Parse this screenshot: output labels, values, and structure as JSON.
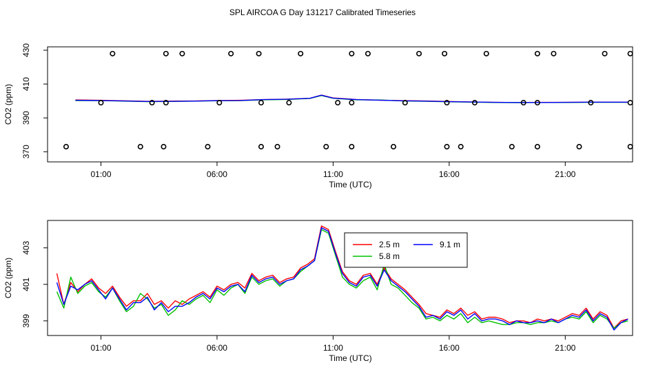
{
  "figure_title": "SPL AIRCOA G  Day 131217  Calibrated Timeseries",
  "chart_data": [
    {
      "type": "line",
      "title": "",
      "xlabel": "Time (UTC)",
      "ylabel": "CO2 (ppm)",
      "xlim": [
        -1.3,
        23.9
      ],
      "ylim": [
        364,
        432
      ],
      "x_ticks": [
        1,
        6,
        11,
        16,
        21
      ],
      "x_tick_labels": [
        "01:00",
        "06:00",
        "11:00",
        "16:00",
        "21:00"
      ],
      "y_ticks": [
        370,
        390,
        410,
        430
      ],
      "y_tick_labels": [
        "370",
        "390",
        "410",
        "430"
      ],
      "grid": false,
      "legend": "none",
      "series": [
        {
          "color": "#ff0000",
          "x": [
            -0.1,
            1,
            2,
            3,
            4,
            5,
            6,
            7,
            8,
            9,
            10,
            10.5,
            11,
            12,
            13,
            14,
            15,
            16,
            17,
            18,
            19,
            20,
            21,
            22,
            23.7
          ],
          "values": [
            400.6,
            400.4,
            400.1,
            399.8,
            399.9,
            400,
            400.3,
            400.4,
            400.8,
            401.1,
            401.6,
            403.5,
            401.8,
            400.9,
            400.5,
            400.2,
            400,
            399.7,
            399.4,
            399.2,
            399.1,
            399.2,
            399.2,
            399.3,
            399.3
          ]
        },
        {
          "color": "#00c000",
          "x": [
            -0.1,
            1,
            2,
            3,
            4,
            5,
            6,
            7,
            8,
            9,
            10,
            10.5,
            11,
            12,
            13,
            14,
            15,
            16,
            17,
            18,
            19,
            20,
            21,
            22,
            23.7
          ],
          "values": [
            400.2,
            400.2,
            399.9,
            399.6,
            399.7,
            399.9,
            400.1,
            400.2,
            400.7,
            400.9,
            401.5,
            403.2,
            401.6,
            400.7,
            400.6,
            400,
            399.8,
            399.5,
            399.3,
            399.1,
            399,
            399.1,
            399.1,
            399.2,
            399.2
          ]
        },
        {
          "color": "#0000ff",
          "x": [
            -0.1,
            1,
            2,
            3,
            4,
            5,
            6,
            7,
            8,
            9,
            10,
            10.5,
            11,
            12,
            13,
            14,
            15,
            16,
            17,
            18,
            19,
            20,
            21,
            22,
            23.7
          ],
          "values": [
            400.4,
            400.3,
            400,
            399.7,
            399.8,
            399.9,
            400.2,
            400.3,
            400.8,
            401,
            401.6,
            403.4,
            401.7,
            400.8,
            400.5,
            400.1,
            399.9,
            399.6,
            399.4,
            399.2,
            399.1,
            399.1,
            399.2,
            399.3,
            399.3
          ]
        },
        {
          "type": "scatter",
          "marker": "circle",
          "color": "#000000",
          "x": [
            1.5,
            3.8,
            4.5,
            6.6,
            7.8,
            9.6,
            11.8,
            12.5,
            14.7,
            15.8,
            17.6,
            19.8,
            20.5,
            22.7,
            23.8,
            1,
            3.2,
            3.8,
            6.1,
            7.9,
            9.1,
            11.2,
            11.8,
            14.1,
            15.9,
            17.1,
            19.2,
            19.8,
            22.1,
            23.8,
            -0.5,
            2.7,
            3.7,
            5.6,
            7.9,
            8.6,
            10.7,
            11.8,
            13.6,
            15.9,
            16.5,
            18.7,
            19.8,
            21.6,
            23.8
          ],
          "values": [
            428,
            428,
            428,
            428,
            428,
            428,
            428,
            428,
            428,
            428,
            428,
            428,
            428,
            428,
            428,
            399,
            399,
            399,
            399,
            399,
            399,
            399,
            399,
            399,
            399,
            399,
            399,
            399,
            399,
            399,
            373,
            373,
            373,
            373,
            373,
            373,
            373,
            373,
            373,
            373,
            373,
            373,
            373,
            373,
            373
          ]
        }
      ]
    },
    {
      "type": "line",
      "title": "",
      "xlabel": "Time (UTC)",
      "ylabel": "CO2 (ppm)",
      "xlim": [
        -1.3,
        23.9
      ],
      "ylim": [
        398.2,
        404.5
      ],
      "x_ticks": [
        1,
        6,
        11,
        16,
        21
      ],
      "x_tick_labels": [
        "01:00",
        "06:00",
        "11:00",
        "16:00",
        "21:00"
      ],
      "y_ticks": [
        399,
        401,
        403
      ],
      "y_tick_labels": [
        "399",
        "401",
        "403"
      ],
      "grid": false,
      "legend": "top-right",
      "x": [
        -0.9,
        -0.6,
        -0.3,
        0,
        0.3,
        0.6,
        0.9,
        1.2,
        1.5,
        1.8,
        2.1,
        2.4,
        2.7,
        3.0,
        3.3,
        3.6,
        3.9,
        4.2,
        4.5,
        4.8,
        5.1,
        5.4,
        5.7,
        6.0,
        6.3,
        6.6,
        6.9,
        7.2,
        7.5,
        7.8,
        8.1,
        8.4,
        8.7,
        9.0,
        9.3,
        9.6,
        9.9,
        10.2,
        10.5,
        10.8,
        11.1,
        11.4,
        11.7,
        12.0,
        12.3,
        12.6,
        12.9,
        13.2,
        13.5,
        13.8,
        14.1,
        14.4,
        14.7,
        15.0,
        15.3,
        15.6,
        15.9,
        16.2,
        16.5,
        16.8,
        17.1,
        17.4,
        17.7,
        18.0,
        18.3,
        18.6,
        18.9,
        19.2,
        19.5,
        19.8,
        20.1,
        20.4,
        20.7,
        21.0,
        21.3,
        21.6,
        21.9,
        22.2,
        22.5,
        22.8,
        23.1,
        23.4,
        23.7
      ],
      "series": [
        {
          "name": "2.5 m",
          "color": "#ff0000",
          "values": [
            401.6,
            399.9,
            401.1,
            400.6,
            401.0,
            401.3,
            400.8,
            400.5,
            400.9,
            400.3,
            399.8,
            400.1,
            400.1,
            400.5,
            399.9,
            400.1,
            399.7,
            400.1,
            399.9,
            400.2,
            400.4,
            400.6,
            400.3,
            400.9,
            400.7,
            401.0,
            401.1,
            400.8,
            401.6,
            401.2,
            401.4,
            401.5,
            401.1,
            401.3,
            401.4,
            401.9,
            402.1,
            402.4,
            404.2,
            404.0,
            402.8,
            401.7,
            401.2,
            401.0,
            401.5,
            401.6,
            401.0,
            401.9,
            401.3,
            401.0,
            400.7,
            400.3,
            399.9,
            399.4,
            399.3,
            399.2,
            399.6,
            399.4,
            399.7,
            399.3,
            399.5,
            399.1,
            399.2,
            399.2,
            399.1,
            398.9,
            399.0,
            399.0,
            398.9,
            399.1,
            399.0,
            399.1,
            399.0,
            399.2,
            399.4,
            399.3,
            399.7,
            399.1,
            399.5,
            399.3,
            398.6,
            399.0,
            399.1
          ]
        },
        {
          "name": "5.8 m",
          "color": "#00c000",
          "values": [
            400.6,
            399.7,
            401.4,
            400.5,
            400.9,
            401.1,
            400.6,
            400.3,
            400.8,
            400.1,
            399.5,
            399.8,
            400.5,
            400.2,
            399.7,
            399.9,
            399.3,
            399.6,
            400.1,
            399.9,
            400.2,
            400.4,
            400.0,
            400.7,
            400.4,
            400.8,
            401.0,
            400.5,
            401.4,
            401.0,
            401.2,
            401.3,
            400.9,
            401.2,
            401.3,
            401.7,
            402.0,
            402.3,
            404.0,
            403.8,
            402.6,
            401.4,
            401.0,
            400.8,
            401.2,
            401.4,
            400.7,
            402.1,
            401.0,
            400.8,
            400.4,
            400.0,
            399.7,
            399.1,
            399.2,
            399.0,
            399.3,
            399.1,
            399.4,
            398.9,
            399.2,
            398.9,
            399.0,
            398.9,
            398.8,
            398.8,
            398.9,
            398.9,
            398.8,
            398.9,
            398.9,
            399.0,
            398.9,
            399.1,
            399.2,
            399.1,
            399.5,
            398.9,
            399.3,
            399.1,
            398.6,
            398.9,
            399.0
          ]
        },
        {
          "name": "9.1 m",
          "color": "#0000ff",
          "values": [
            401.1,
            399.9,
            400.9,
            400.7,
            401.0,
            401.2,
            400.7,
            400.2,
            400.8,
            400.2,
            399.6,
            400.0,
            400.0,
            400.3,
            399.6,
            400.0,
            399.5,
            399.8,
            399.8,
            400.0,
            400.3,
            400.5,
            400.2,
            400.8,
            400.6,
            400.9,
            401.0,
            400.6,
            401.5,
            401.1,
            401.3,
            401.4,
            401.0,
            401.2,
            401.3,
            401.8,
            402.0,
            402.3,
            404.1,
            403.9,
            402.7,
            401.6,
            401.1,
            400.9,
            401.4,
            401.5,
            400.9,
            401.8,
            401.2,
            400.9,
            400.6,
            400.2,
            399.8,
            399.2,
            399.3,
            399.1,
            399.5,
            399.3,
            399.6,
            399.1,
            399.4,
            399.0,
            399.1,
            399.1,
            399.0,
            398.8,
            399.0,
            398.9,
            398.9,
            399.0,
            398.9,
            399.1,
            398.9,
            399.1,
            399.3,
            399.2,
            399.6,
            399.0,
            399.4,
            399.2,
            398.5,
            398.9,
            399.1
          ]
        }
      ]
    }
  ]
}
